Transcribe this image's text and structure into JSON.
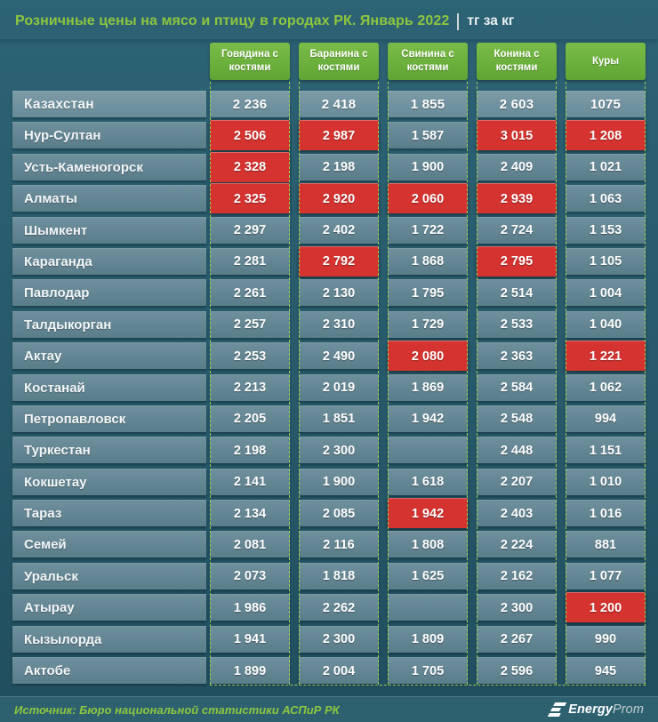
{
  "title": {
    "main": "Розничные цены на мясо и птицу в городах РК. Январь 2022",
    "unit": "тг за кг"
  },
  "chart_data": {
    "type": "table",
    "title": "Розничные цены на мясо и птицу в городах РК. Январь 2022",
    "unit": "тг за кг",
    "columns": [
      "Говядина с костями",
      "Баранина с костями",
      "Свинина с костями",
      "Конина с костями",
      "Куры"
    ],
    "highlight_meaning": "red cell = highest prices",
    "rows": [
      {
        "label": "Казахстан",
        "emphasis": true,
        "values": [
          "2 236",
          "2 418",
          "1 855",
          "2 603",
          "1075"
        ],
        "highlight": [
          false,
          false,
          false,
          false,
          false
        ]
      },
      {
        "label": "Нур-Султан",
        "emphasis": false,
        "values": [
          "2 506",
          "2 987",
          "1 587",
          "3 015",
          "1 208"
        ],
        "highlight": [
          true,
          true,
          false,
          true,
          true
        ]
      },
      {
        "label": "Усть-Каменогорск",
        "emphasis": false,
        "values": [
          "2 328",
          "2 198",
          "1 900",
          "2 409",
          "1 021"
        ],
        "highlight": [
          true,
          false,
          false,
          false,
          false
        ]
      },
      {
        "label": "Алматы",
        "emphasis": false,
        "values": [
          "2 325",
          "2 920",
          "2 060",
          "2 939",
          "1 063"
        ],
        "highlight": [
          true,
          true,
          true,
          true,
          false
        ]
      },
      {
        "label": "Шымкент",
        "emphasis": false,
        "values": [
          "2 297",
          "2 402",
          "1 722",
          "2 724",
          "1 153"
        ],
        "highlight": [
          false,
          false,
          false,
          false,
          false
        ]
      },
      {
        "label": "Караганда",
        "emphasis": false,
        "values": [
          "2 281",
          "2 792",
          "1 868",
          "2 795",
          "1 105"
        ],
        "highlight": [
          false,
          true,
          false,
          true,
          false
        ]
      },
      {
        "label": "Павлодар",
        "emphasis": false,
        "values": [
          "2 261",
          "2 130",
          "1 795",
          "2 514",
          "1 004"
        ],
        "highlight": [
          false,
          false,
          false,
          false,
          false
        ]
      },
      {
        "label": "Талдыкорган",
        "emphasis": false,
        "values": [
          "2 257",
          "2 310",
          "1 729",
          "2 533",
          "1 040"
        ],
        "highlight": [
          false,
          false,
          false,
          false,
          false
        ]
      },
      {
        "label": "Актау",
        "emphasis": false,
        "values": [
          "2 253",
          "2 490",
          "2 080",
          "2 363",
          "1 221"
        ],
        "highlight": [
          false,
          false,
          true,
          false,
          true
        ]
      },
      {
        "label": "Костанай",
        "emphasis": false,
        "values": [
          "2 213",
          "2 019",
          "1 869",
          "2 584",
          "1 062"
        ],
        "highlight": [
          false,
          false,
          false,
          false,
          false
        ]
      },
      {
        "label": "Петропавловск",
        "emphasis": false,
        "values": [
          "2 205",
          "1 851",
          "1 942",
          "2 548",
          "994"
        ],
        "highlight": [
          false,
          false,
          false,
          false,
          false
        ]
      },
      {
        "label": "Туркестан",
        "emphasis": false,
        "values": [
          "2 198",
          "2 300",
          "",
          "2 448",
          "1 151"
        ],
        "highlight": [
          false,
          false,
          false,
          false,
          false
        ]
      },
      {
        "label": "Кокшетау",
        "emphasis": false,
        "values": [
          "2 141",
          "1 900",
          "1 618",
          "2 207",
          "1 010"
        ],
        "highlight": [
          false,
          false,
          false,
          false,
          false
        ]
      },
      {
        "label": "Тараз",
        "emphasis": false,
        "values": [
          "2 134",
          "2 085",
          "1 942",
          "2 403",
          "1 016"
        ],
        "highlight": [
          false,
          false,
          true,
          false,
          false
        ]
      },
      {
        "label": "Семей",
        "emphasis": false,
        "values": [
          "2 081",
          "2 116",
          "1 808",
          "2 224",
          "881"
        ],
        "highlight": [
          false,
          false,
          false,
          false,
          false
        ]
      },
      {
        "label": "Уральск",
        "emphasis": false,
        "values": [
          "2 073",
          "1 818",
          "1 625",
          "2 162",
          "1 077"
        ],
        "highlight": [
          false,
          false,
          false,
          false,
          false
        ]
      },
      {
        "label": "Атырау",
        "emphasis": false,
        "values": [
          "1 986",
          "2 262",
          "",
          "2 300",
          "1 200"
        ],
        "highlight": [
          false,
          false,
          false,
          false,
          true
        ]
      },
      {
        "label": "Кызылорда",
        "emphasis": false,
        "values": [
          "1 941",
          "2 300",
          "1 809",
          "2 267",
          "990"
        ],
        "highlight": [
          false,
          false,
          false,
          false,
          false
        ]
      },
      {
        "label": "Актобе",
        "emphasis": false,
        "values": [
          "1 899",
          "2 004",
          "1 705",
          "2 596",
          "945"
        ],
        "highlight": [
          false,
          false,
          false,
          false,
          false
        ]
      }
    ]
  },
  "footer": {
    "source": "Источник: Бюро национальной статистики АСПиР РК",
    "brand_bold": "Energy",
    "brand_light": "Prom"
  },
  "colors": {
    "accent_green": "#8dc63f",
    "header_green": "#6cb33f",
    "highlight_red": "#d4332f",
    "background_teal": "#27596a",
    "row_teal": "#64858f",
    "text_white": "#ffffff"
  }
}
